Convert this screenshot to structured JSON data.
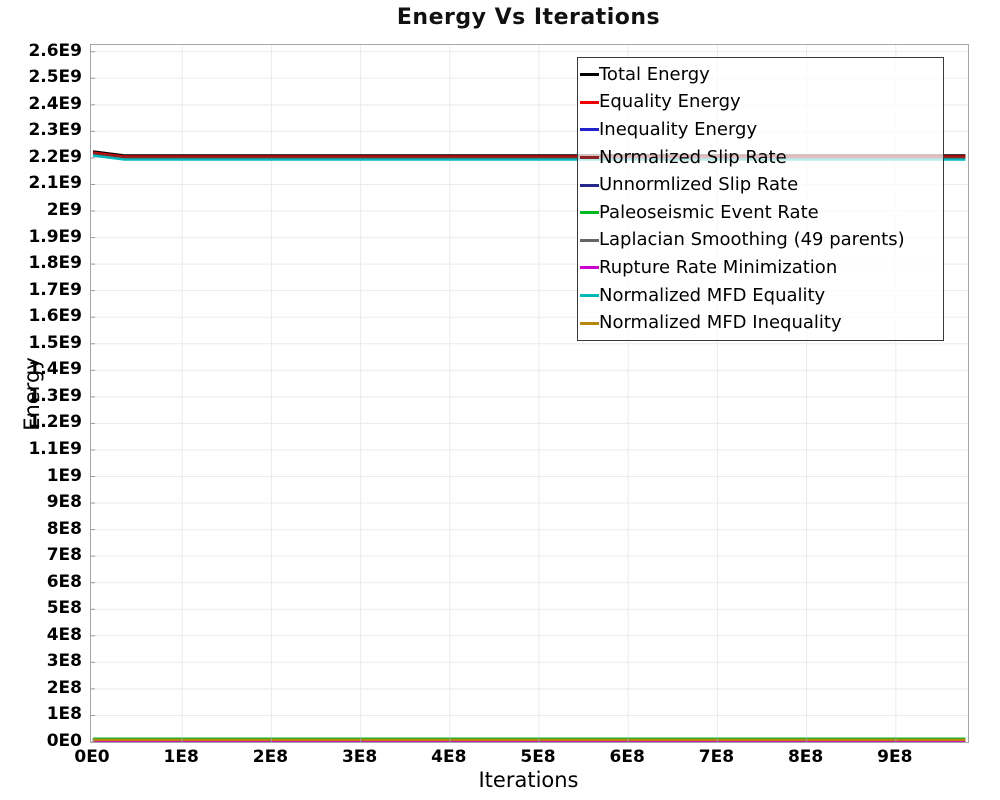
{
  "title": "Energy Vs Iterations",
  "axes": {
    "x_label": "Iterations",
    "y_label": "Energy",
    "x_ticks": [
      {
        "label": "0E0",
        "value": 0
      },
      {
        "label": "1E8",
        "value": 100000000
      },
      {
        "label": "2E8",
        "value": 200000000
      },
      {
        "label": "3E8",
        "value": 300000000
      },
      {
        "label": "4E8",
        "value": 400000000
      },
      {
        "label": "5E8",
        "value": 500000000
      },
      {
        "label": "6E8",
        "value": 600000000
      },
      {
        "label": "7E8",
        "value": 700000000
      },
      {
        "label": "8E8",
        "value": 800000000
      },
      {
        "label": "9E8",
        "value": 900000000
      }
    ],
    "y_ticks": [
      {
        "label": "0E0",
        "value": 0
      },
      {
        "label": "1E8",
        "value": 100000000
      },
      {
        "label": "2E8",
        "value": 200000000
      },
      {
        "label": "3E8",
        "value": 300000000
      },
      {
        "label": "4E8",
        "value": 400000000
      },
      {
        "label": "5E8",
        "value": 500000000
      },
      {
        "label": "6E8",
        "value": 600000000
      },
      {
        "label": "7E8",
        "value": 700000000
      },
      {
        "label": "8E8",
        "value": 800000000
      },
      {
        "label": "9E8",
        "value": 900000000
      },
      {
        "label": "1E9",
        "value": 1000000000
      },
      {
        "label": "1.1E9",
        "value": 1100000000
      },
      {
        "label": "1.2E9",
        "value": 1200000000
      },
      {
        "label": "1.3E9",
        "value": 1300000000
      },
      {
        "label": "1.4E9",
        "value": 1400000000
      },
      {
        "label": "1.5E9",
        "value": 1500000000
      },
      {
        "label": "1.6E9",
        "value": 1600000000
      },
      {
        "label": "1.7E9",
        "value": 1700000000
      },
      {
        "label": "1.8E9",
        "value": 1800000000
      },
      {
        "label": "1.9E9",
        "value": 1900000000
      },
      {
        "label": "2E9",
        "value": 2000000000
      },
      {
        "label": "2.1E9",
        "value": 2100000000
      },
      {
        "label": "2.2E9",
        "value": 2200000000
      },
      {
        "label": "2.3E9",
        "value": 2300000000
      },
      {
        "label": "2.4E9",
        "value": 2400000000
      },
      {
        "label": "2.5E9",
        "value": 2500000000
      },
      {
        "label": "2.6E9",
        "value": 2600000000
      }
    ]
  },
  "colors": {
    "grid": "#ebebeb",
    "plot_border": "#a6a6a6",
    "tick_mark": "#999999",
    "legend_border": "#3a3a3a"
  },
  "chart_data": {
    "type": "line",
    "title": "Energy Vs Iterations",
    "xlabel": "Iterations",
    "ylabel": "Energy",
    "xlim": [
      0,
      978000000
    ],
    "ylim": [
      0,
      2625000000
    ],
    "grid": true,
    "legend_position": "inside-top-right",
    "series": [
      {
        "name": "Total Energy",
        "color": "#000000",
        "width": 2.5,
        "x": [
          0,
          35000000,
          978000000
        ],
        "y": [
          2224000000,
          2209000000,
          2209000000
        ]
      },
      {
        "name": "Equality Energy",
        "color": "#ee0000",
        "width": 2.5,
        "x": [
          0,
          35000000,
          978000000
        ],
        "y": [
          2220000000,
          2205000000,
          2205000000
        ]
      },
      {
        "name": "Inequality Energy",
        "color": "#2222cc",
        "width": 2,
        "x": [
          0,
          978000000
        ],
        "y": [
          5000000,
          5000000
        ]
      },
      {
        "name": "Normalized Slip Rate",
        "color": "#8b2323",
        "width": 2.5,
        "x": [
          0,
          35000000,
          978000000
        ],
        "y": [
          2216500000,
          2201500000,
          2201500000
        ]
      },
      {
        "name": "Unnormlized Slip Rate",
        "color": "#28288b",
        "width": 2,
        "x": [
          0,
          978000000
        ],
        "y": [
          4000000,
          4000000
        ]
      },
      {
        "name": "Paleoseismic Event Rate",
        "color": "#00bb22",
        "width": 2,
        "x": [
          0,
          978000000
        ],
        "y": [
          13000000,
          13000000
        ]
      },
      {
        "name": "Laplacian Smoothing (49 parents)",
        "color": "#666666",
        "width": 2,
        "x": [
          0,
          978000000
        ],
        "y": [
          6000000,
          6000000
        ]
      },
      {
        "name": "Rupture Rate Minimization",
        "color": "#cc00cc",
        "width": 2,
        "x": [
          0,
          978000000
        ],
        "y": [
          3000000,
          3000000
        ]
      },
      {
        "name": "Normalized MFD Equality",
        "color": "#00b8b8",
        "width": 2.5,
        "x": [
          0,
          35000000,
          978000000
        ],
        "y": [
          2209000000,
          2194000000,
          2194000000
        ]
      },
      {
        "name": "Normalized MFD Inequality",
        "color": "#b8860b",
        "width": 2.5,
        "x": [
          0,
          978000000
        ],
        "y": [
          8000000,
          8000000
        ]
      }
    ]
  }
}
